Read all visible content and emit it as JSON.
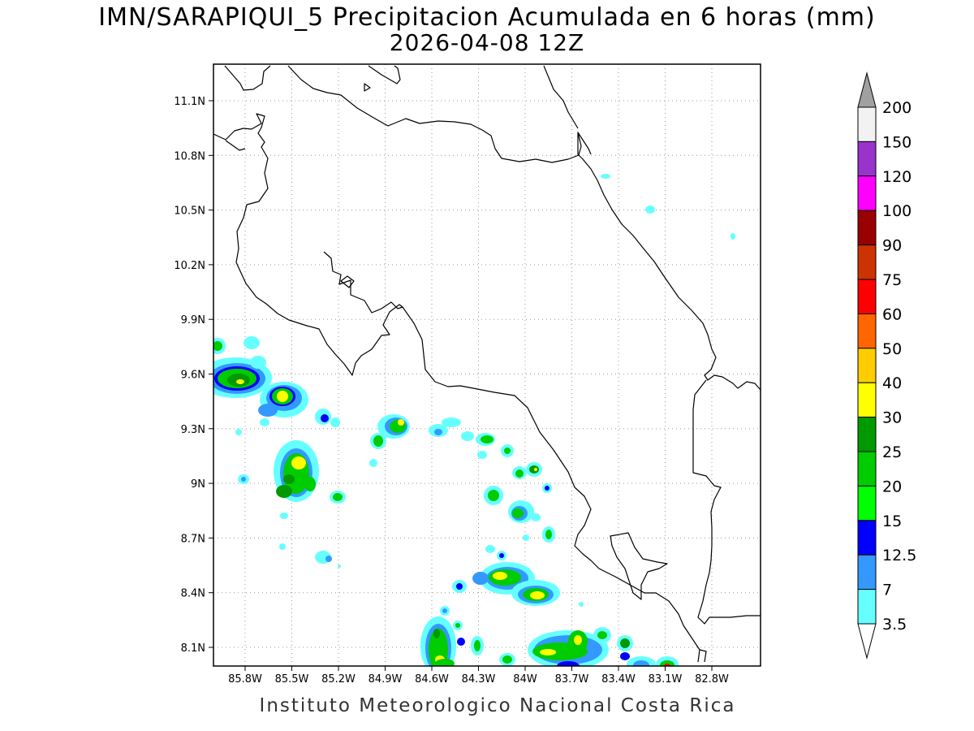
{
  "title": {
    "line1": "IMN/SARAPIQUI_5 Precipitacion Acumulada en 6 horas (mm)",
    "line2": "2026-04-08 12Z"
  },
  "footer": "Instituto Meteorologico Nacional Costa Rica",
  "map": {
    "lat_labels": [
      "11.1N",
      "10.8N",
      "10.5N",
      "10.2N",
      "9.9N",
      "9.6N",
      "9.3N",
      "9N",
      "8.7N",
      "8.4N",
      "8.1N"
    ],
    "lon_labels": [
      "85.8W",
      "85.5W",
      "85.2W",
      "84.9W",
      "84.6W",
      "84.3W",
      "84W",
      "83.7W",
      "83.4W",
      "83.1W",
      "82.8W"
    ],
    "grid": "dotted",
    "coastline_color": "#000000"
  },
  "colorbar": {
    "levels": [
      "3.5",
      "7",
      "12.5",
      "15",
      "20",
      "25",
      "30",
      "40",
      "50",
      "60",
      "75",
      "90",
      "100",
      "120",
      "150",
      "200"
    ],
    "colors": [
      "#66ffff",
      "#3399ff",
      "#0000ff",
      "#00ff00",
      "#00cc00",
      "#009900",
      "#ffff00",
      "#ffcc00",
      "#ff6600",
      "#ff0000",
      "#cc3300",
      "#990000",
      "#ff00ff",
      "#9933cc",
      "#f2f2f2",
      "#a0a0a0"
    ]
  }
}
